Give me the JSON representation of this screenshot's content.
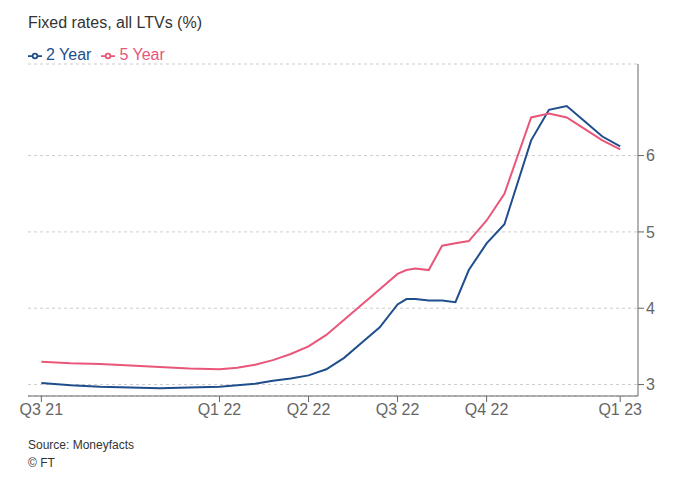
{
  "chart_data": {
    "type": "line",
    "title": "Fixed rates, all LTVs (%)",
    "annotations": [
      "Source: Moneyfacts",
      "© FT"
    ],
    "x": [
      0,
      0.33,
      0.66,
      1.0,
      1.33,
      1.66,
      2.0,
      2.2,
      2.4,
      2.6,
      2.8,
      3.0,
      3.2,
      3.4,
      3.6,
      3.8,
      4.0,
      4.1,
      4.2,
      4.35,
      4.5,
      4.65,
      4.8,
      5.0,
      5.2,
      5.5,
      5.7,
      5.9,
      6.1,
      6.3,
      6.5
    ],
    "series": [
      {
        "name": "2 Year",
        "color": "#1f4e8c",
        "values": [
          3.02,
          2.99,
          2.97,
          2.96,
          2.95,
          2.96,
          2.97,
          2.99,
          3.01,
          3.05,
          3.08,
          3.12,
          3.2,
          3.35,
          3.55,
          3.75,
          4.05,
          4.12,
          4.12,
          4.1,
          4.1,
          4.08,
          4.5,
          4.85,
          5.1,
          6.2,
          6.6,
          6.65,
          6.45,
          6.25,
          6.12
        ]
      },
      {
        "name": "5 Year",
        "color": "#e8567a",
        "values": [
          3.3,
          3.28,
          3.27,
          3.25,
          3.23,
          3.21,
          3.2,
          3.22,
          3.26,
          3.32,
          3.4,
          3.5,
          3.65,
          3.85,
          4.05,
          4.25,
          4.45,
          4.5,
          4.52,
          4.5,
          4.82,
          4.85,
          4.88,
          5.15,
          5.5,
          6.5,
          6.55,
          6.5,
          6.35,
          6.2,
          6.08
        ]
      }
    ],
    "xlim": [
      -0.15,
      6.7
    ],
    "xticks": [
      {
        "value": 0,
        "label": "Q3 21"
      },
      {
        "value": 2.0,
        "label": "Q1 22"
      },
      {
        "value": 3.0,
        "label": "Q2 22"
      },
      {
        "value": 4.0,
        "label": "Q3 22"
      },
      {
        "value": 5.0,
        "label": "Q4 22"
      },
      {
        "value": 6.5,
        "label": "Q1 23"
      }
    ],
    "ylim": [
      2.85,
      7.2
    ],
    "yticks": [
      3,
      4,
      5,
      6
    ],
    "grid": true,
    "legend": "upper left"
  }
}
